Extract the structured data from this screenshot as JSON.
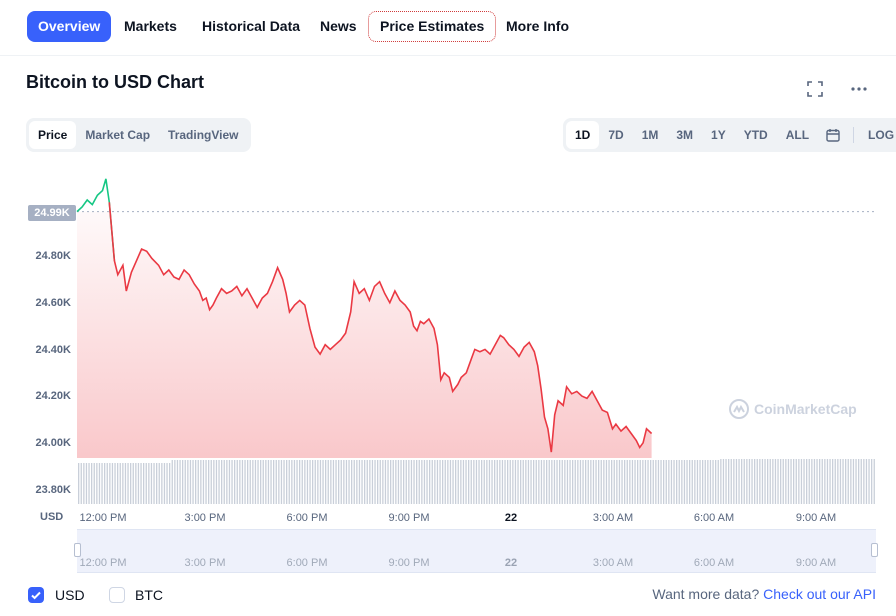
{
  "tabs": [
    {
      "label": "Overview",
      "active": true
    },
    {
      "label": "Markets"
    },
    {
      "label": "Historical Data"
    },
    {
      "label": "News"
    },
    {
      "label": "Price Estimates",
      "outlined": true
    },
    {
      "label": "More Info"
    }
  ],
  "chart_title": "Bitcoin to USD Chart",
  "icons": {
    "fullscreen": "expand-icon",
    "more": "more-horizontal-icon",
    "calendar": "calendar-icon",
    "watermark": "coinmarketcap-logo-icon"
  },
  "view_options": [
    {
      "label": "Price",
      "active": true
    },
    {
      "label": "Market Cap"
    },
    {
      "label": "TradingView"
    }
  ],
  "range_options": [
    {
      "label": "1D",
      "active": true
    },
    {
      "label": "7D"
    },
    {
      "label": "1M"
    },
    {
      "label": "3M"
    },
    {
      "label": "1Y"
    },
    {
      "label": "YTD"
    },
    {
      "label": "ALL"
    }
  ],
  "log_label": "LOG",
  "axis_currency": "USD",
  "current_price_tag": "24.99K",
  "watermark_text": "CoinMarketCap",
  "colors": {
    "accent": "#3861fb",
    "up": "#16c784",
    "down": "#ea3943"
  },
  "footer": {
    "usd_label": "USD",
    "usd_checked": true,
    "btc_label": "BTC",
    "btc_checked": false,
    "more_prefix": "Want more data?",
    "more_link": "Check out our API"
  },
  "chart_data": {
    "type": "line",
    "ylabel_ticks": [
      "24.80K",
      "24.60K",
      "24.40K",
      "24.20K",
      "24.00K",
      "23.80K"
    ],
    "yticks": [
      24800,
      24600,
      24400,
      24200,
      24000,
      23800
    ],
    "ylim": [
      23780,
      25150
    ],
    "xtick_labels": [
      "12:00 PM",
      "3:00 PM",
      "6:00 PM",
      "9:00 PM",
      "22",
      "3:00 AM",
      "6:00 AM",
      "9:00 AM"
    ],
    "xtick_hours": [
      1,
      4,
      7,
      10,
      13,
      16,
      19,
      22
    ],
    "reference_price": 24990,
    "series": [
      {
        "points": [
          [
            0,
            24990
          ],
          [
            0.15,
            25010
          ],
          [
            0.3,
            25040
          ],
          [
            0.45,
            25020
          ],
          [
            0.6,
            25060
          ],
          [
            0.75,
            25080
          ],
          [
            0.85,
            25130
          ],
          [
            0.95,
            25030
          ],
          [
            1.1,
            24780
          ],
          [
            1.2,
            24720
          ],
          [
            1.35,
            24760
          ],
          [
            1.45,
            24650
          ],
          [
            1.6,
            24730
          ],
          [
            1.75,
            24780
          ],
          [
            1.9,
            24830
          ],
          [
            2.05,
            24820
          ],
          [
            2.2,
            24790
          ],
          [
            2.4,
            24760
          ],
          [
            2.55,
            24720
          ],
          [
            2.7,
            24740
          ],
          [
            2.85,
            24710
          ],
          [
            3.0,
            24700
          ],
          [
            3.15,
            24740
          ],
          [
            3.3,
            24720
          ],
          [
            3.45,
            24680
          ],
          [
            3.6,
            24650
          ],
          [
            3.7,
            24610
          ],
          [
            3.8,
            24620
          ],
          [
            3.9,
            24570
          ],
          [
            4.0,
            24590
          ],
          [
            4.1,
            24620
          ],
          [
            4.25,
            24660
          ],
          [
            4.4,
            24640
          ],
          [
            4.55,
            24650
          ],
          [
            4.7,
            24670
          ],
          [
            4.85,
            24630
          ],
          [
            5.0,
            24660
          ],
          [
            5.15,
            24620
          ],
          [
            5.3,
            24580
          ],
          [
            5.45,
            24620
          ],
          [
            5.6,
            24640
          ],
          [
            5.75,
            24690
          ],
          [
            5.9,
            24750
          ],
          [
            6.05,
            24700
          ],
          [
            6.15,
            24640
          ],
          [
            6.25,
            24560
          ],
          [
            6.4,
            24590
          ],
          [
            6.55,
            24610
          ],
          [
            6.7,
            24590
          ],
          [
            6.85,
            24490
          ],
          [
            7.0,
            24410
          ],
          [
            7.15,
            24380
          ],
          [
            7.3,
            24420
          ],
          [
            7.45,
            24400
          ],
          [
            7.6,
            24420
          ],
          [
            7.75,
            24440
          ],
          [
            7.9,
            24470
          ],
          [
            8.05,
            24560
          ],
          [
            8.15,
            24690
          ],
          [
            8.3,
            24640
          ],
          [
            8.45,
            24660
          ],
          [
            8.6,
            24610
          ],
          [
            8.75,
            24670
          ],
          [
            8.9,
            24690
          ],
          [
            9.05,
            24640
          ],
          [
            9.2,
            24600
          ],
          [
            9.35,
            24650
          ],
          [
            9.5,
            24610
          ],
          [
            9.65,
            24590
          ],
          [
            9.8,
            24560
          ],
          [
            9.9,
            24500
          ],
          [
            10.0,
            24480
          ],
          [
            10.1,
            24520
          ],
          [
            10.2,
            24510
          ],
          [
            10.35,
            24530
          ],
          [
            10.5,
            24490
          ],
          [
            10.6,
            24420
          ],
          [
            10.7,
            24270
          ],
          [
            10.8,
            24300
          ],
          [
            10.95,
            24280
          ],
          [
            11.05,
            24220
          ],
          [
            11.2,
            24250
          ],
          [
            11.3,
            24280
          ],
          [
            11.45,
            24300
          ],
          [
            11.6,
            24360
          ],
          [
            11.7,
            24400
          ],
          [
            11.85,
            24390
          ],
          [
            12.0,
            24400
          ],
          [
            12.15,
            24380
          ],
          [
            12.3,
            24420
          ],
          [
            12.45,
            24460
          ],
          [
            12.55,
            24450
          ],
          [
            12.7,
            24420
          ],
          [
            12.85,
            24400
          ],
          [
            13.0,
            24370
          ],
          [
            13.15,
            24410
          ],
          [
            13.3,
            24430
          ],
          [
            13.45,
            24390
          ],
          [
            13.55,
            24330
          ],
          [
            13.65,
            24230
          ],
          [
            13.75,
            24110
          ],
          [
            13.85,
            24060
          ],
          [
            13.95,
            23960
          ],
          [
            14.05,
            24120
          ],
          [
            14.15,
            24180
          ],
          [
            14.3,
            24160
          ],
          [
            14.4,
            24240
          ],
          [
            14.55,
            24210
          ],
          [
            14.7,
            24220
          ],
          [
            14.85,
            24200
          ],
          [
            15.0,
            24190
          ],
          [
            15.15,
            24220
          ],
          [
            15.3,
            24180
          ],
          [
            15.45,
            24140
          ],
          [
            15.6,
            24130
          ],
          [
            15.75,
            24060
          ],
          [
            15.85,
            24080
          ],
          [
            16.0,
            24050
          ],
          [
            16.15,
            24070
          ],
          [
            16.3,
            24040
          ],
          [
            16.45,
            24010
          ],
          [
            16.55,
            23980
          ],
          [
            16.65,
            24000
          ],
          [
            16.75,
            24060
          ],
          [
            16.9,
            24040
          ]
        ]
      }
    ]
  }
}
